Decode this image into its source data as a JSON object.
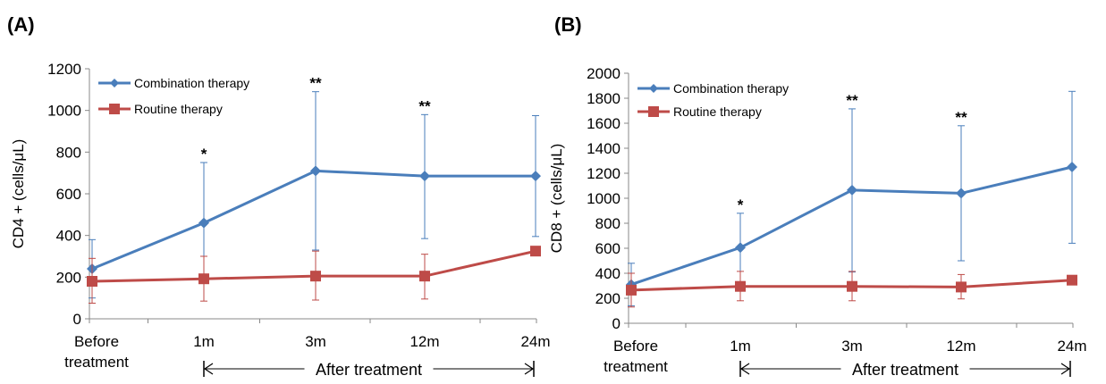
{
  "chart_data": [
    {
      "type": "line",
      "panel": "(A)",
      "ylabel": "CD4 + (cells/μL)",
      "categories": [
        "Before treatment",
        "1m",
        "3m",
        "12m",
        "24m"
      ],
      "category_lines": [
        [
          "Before",
          "treatment"
        ],
        [
          "1m"
        ],
        [
          "3m"
        ],
        [
          "12m"
        ],
        [
          "24m"
        ]
      ],
      "ylim": [
        0,
        1200
      ],
      "yticks": [
        0,
        200,
        400,
        600,
        800,
        1000,
        1200
      ],
      "series": [
        {
          "name": "Combination therapy",
          "color": "#4a7ebb",
          "marker": "diamond",
          "values": [
            240,
            460,
            710,
            685,
            685
          ],
          "err_upper": [
            380,
            750,
            1090,
            980,
            975
          ],
          "err_lower": [
            100,
            170,
            330,
            385,
            395
          ]
        },
        {
          "name": "Routine therapy",
          "color": "#be4b48",
          "marker": "square",
          "values": [
            180,
            192,
            205,
            205,
            325
          ],
          "err_upper": [
            290,
            300,
            325,
            310,
            325
          ],
          "err_lower": [
            75,
            85,
            90,
            95,
            325
          ]
        }
      ],
      "significance": [
        {
          "index": 1,
          "label": "*"
        },
        {
          "index": 2,
          "label": "**"
        },
        {
          "index": 3,
          "label": "**"
        }
      ],
      "annotation": "After treatment"
    },
    {
      "type": "line",
      "panel": "(B)",
      "ylabel": "CD8 + (cells/μL)",
      "categories": [
        "Before treatment",
        "1m",
        "3m",
        "12m",
        "24m"
      ],
      "category_lines": [
        [
          "Before",
          "treatment"
        ],
        [
          "1m"
        ],
        [
          "3m"
        ],
        [
          "12m"
        ],
        [
          "24m"
        ]
      ],
      "ylim": [
        0,
        2000
      ],
      "yticks": [
        0,
        200,
        400,
        600,
        800,
        1000,
        1200,
        1400,
        1600,
        1800,
        2000
      ],
      "series": [
        {
          "name": "Combination therapy",
          "color": "#4a7ebb",
          "marker": "diamond",
          "values": [
            310,
            605,
            1065,
            1040,
            1250
          ],
          "err_upper": [
            480,
            880,
            1715,
            1580,
            1855
          ],
          "err_lower": [
            140,
            320,
            410,
            500,
            640
          ]
        },
        {
          "name": "Routine therapy",
          "color": "#be4b48",
          "marker": "square",
          "values": [
            265,
            295,
            295,
            290,
            345
          ],
          "err_upper": [
            400,
            415,
            415,
            390,
            345
          ],
          "err_lower": [
            130,
            180,
            180,
            195,
            345
          ]
        }
      ],
      "significance": [
        {
          "index": 1,
          "label": "*"
        },
        {
          "index": 2,
          "label": "**"
        },
        {
          "index": 3,
          "label": "**"
        }
      ],
      "annotation": "After treatment"
    }
  ]
}
